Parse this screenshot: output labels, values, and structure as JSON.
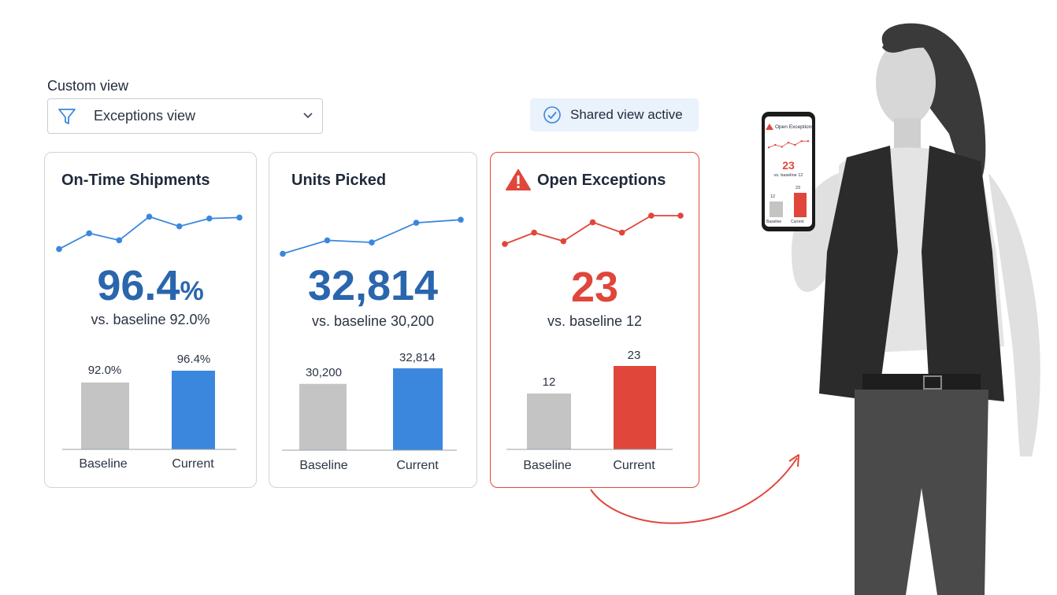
{
  "custom_view": {
    "label": "Custom view",
    "selected": "Exceptions view"
  },
  "shared_badge": "Shared view active",
  "colors": {
    "blue": "#3b87dd",
    "red": "#e0463a",
    "gray": "#c4c4c4",
    "dark_blue": "#2a66ad"
  },
  "cards": [
    {
      "title": "On-Time Shipments",
      "value": "96.4",
      "unit": "%",
      "sub": "vs. baseline 92.0%",
      "trend": [
        45,
        63,
        55,
        82,
        71,
        80,
        81
      ],
      "chart_data": {
        "type": "bar",
        "categories": [
          "Baseline",
          "Current"
        ],
        "values": [
          92.0,
          96.4
        ],
        "value_labels": [
          "92.0%",
          "96.4%"
        ]
      }
    },
    {
      "title": "Units Picked",
      "value": "32,814",
      "unit": "",
      "sub": "vs. baseline 30,200",
      "trend": [
        45,
        58,
        56,
        75,
        78
      ],
      "chart_data": {
        "type": "bar",
        "categories": [
          "Baseline",
          "Current"
        ],
        "values": [
          30200,
          32814
        ],
        "value_labels": [
          "30,200",
          "32,814"
        ]
      }
    },
    {
      "title": "Open Exceptions",
      "value": "23",
      "unit": "",
      "sub": "vs. baseline 12",
      "trend": [
        50,
        62,
        53,
        73,
        62,
        80,
        80
      ],
      "chart_data": {
        "type": "bar",
        "categories": [
          "Baseline",
          "Current"
        ],
        "values": [
          12,
          23
        ],
        "value_labels": [
          "12",
          "23"
        ]
      }
    }
  ],
  "phone": {
    "title": "Open Exceptions",
    "value": "23",
    "sub": "vs. baseline 12",
    "bar_labels": [
      "12",
      "23"
    ],
    "categories": [
      "Baseline",
      "Current"
    ]
  }
}
